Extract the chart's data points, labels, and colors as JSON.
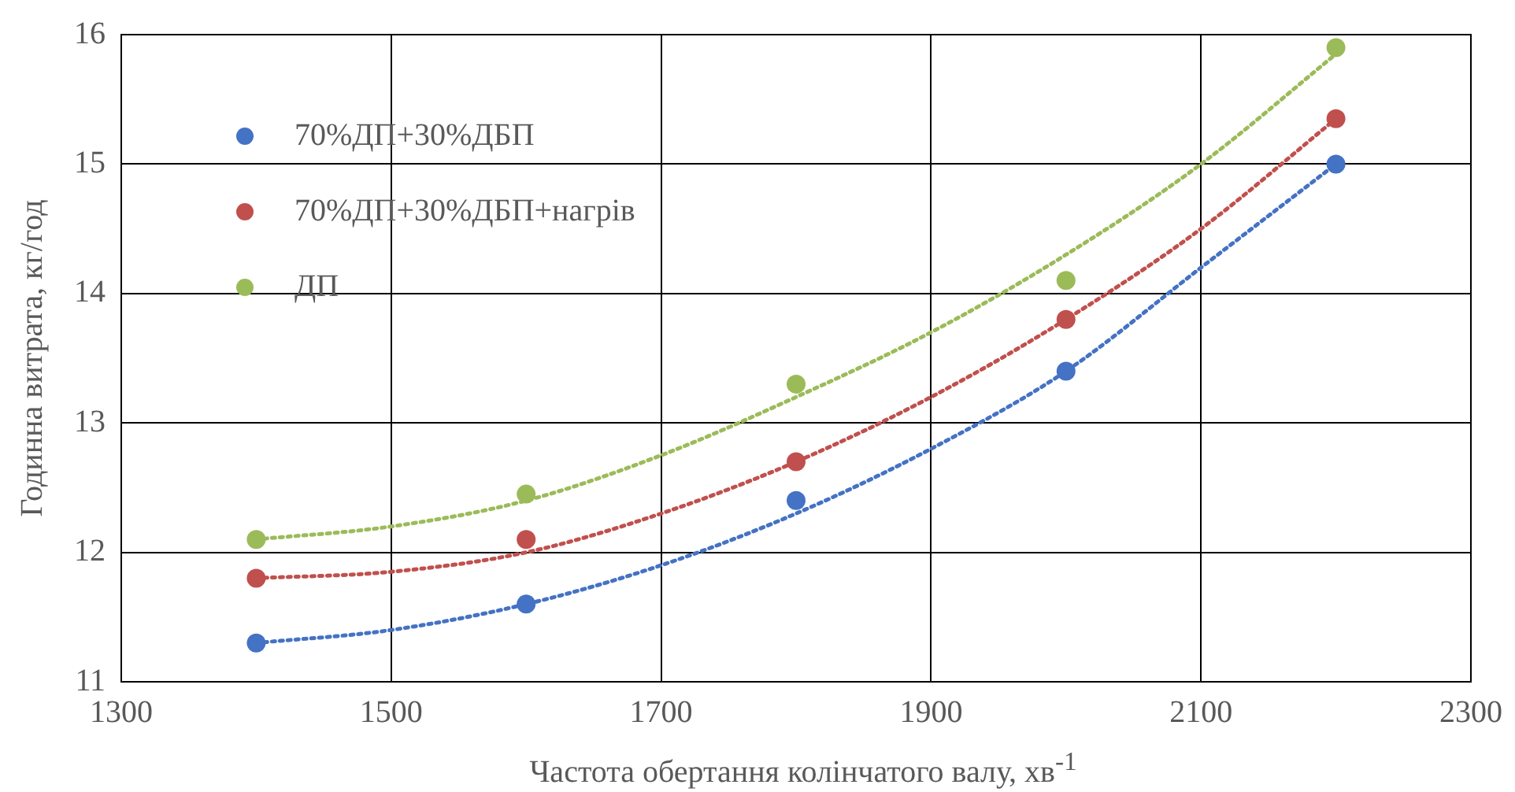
{
  "chart_data": {
    "type": "scatter",
    "xlabel": "Частота обертання колінчатого валу, хв$^{-1}$",
    "ylabel": "Годинна витрата, кг/год",
    "x": [
      1400,
      1600,
      1800,
      2000,
      2200
    ],
    "series": [
      {
        "name": "70%ДП+30%ДБП",
        "color": "#4472c4",
        "values": [
          11.3,
          11.6,
          12.4,
          13.4,
          15.0
        ]
      },
      {
        "name": "70%ДП+30%ДБП+нагрів",
        "color": "#c0504d",
        "values": [
          11.8,
          12.1,
          12.7,
          13.8,
          15.35
        ]
      },
      {
        "name": "ДП",
        "color": "#9bbb59",
        "values": [
          12.1,
          12.45,
          13.3,
          14.1,
          15.9
        ]
      },
      {
        "type": "line",
        "color": "#4472c4",
        "line_style": "dotted",
        "marker": "none",
        "x": [
          1400,
          1500,
          1600,
          1700,
          1800,
          1900,
          2000,
          2100,
          2200
        ],
        "values": [
          11.3,
          11.4,
          11.6,
          11.9,
          12.3,
          12.8,
          13.4,
          14.2,
          15.0
        ]
      },
      {
        "type": "line",
        "color": "#c0504d",
        "line_style": "dotted",
        "marker": "none",
        "x": [
          1400,
          1500,
          1600,
          1700,
          1800,
          1900,
          2000,
          2100,
          2200
        ],
        "values": [
          11.8,
          11.85,
          12.0,
          12.3,
          12.7,
          13.2,
          13.8,
          14.5,
          15.35
        ]
      },
      {
        "type": "line",
        "color": "#9bbb59",
        "line_style": "dotted",
        "marker": "none",
        "x": [
          1400,
          1500,
          1600,
          1700,
          1800,
          1900,
          2000,
          2100,
          2200
        ],
        "values": [
          12.1,
          12.2,
          12.4,
          12.75,
          13.2,
          13.7,
          14.3,
          15.0,
          15.85
        ]
      }
    ],
    "xlim": [
      1300,
      2300
    ],
    "xticks": [
      1300,
      1500,
      1700,
      1900,
      2100,
      2300
    ],
    "ylim": [
      11,
      16
    ],
    "yticks": [
      11,
      12,
      13,
      14,
      15,
      16
    ],
    "grid": true,
    "legend": "top left",
    "marker": "circle"
  }
}
